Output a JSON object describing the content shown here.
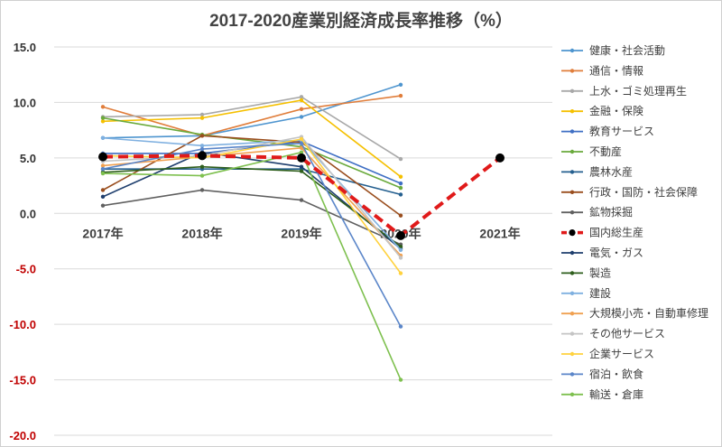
{
  "chart_data": {
    "type": "line",
    "title": "2017-2020産業別経済成長率推移（%）",
    "xlabel": "",
    "ylabel": "",
    "categories": [
      "2017年",
      "2018年",
      "2019年",
      "2020年",
      "2021年"
    ],
    "ylim": [
      -20,
      15
    ],
    "yticks": [
      "15.0",
      "10.0",
      "5.0",
      "0.0",
      "-5.0",
      "-10.0",
      "-15.0",
      "-20.0"
    ],
    "grid": true,
    "legend_position": "right",
    "series": [
      {
        "name": "健康・社会活動",
        "color": "#4e95cf",
        "values": [
          6.8,
          7.0,
          8.7,
          11.6,
          null
        ]
      },
      {
        "name": "通信・情報",
        "color": "#e07d3a",
        "values": [
          9.6,
          7.0,
          9.4,
          10.6,
          null
        ]
      },
      {
        "name": "上水・ゴミ処理再生",
        "color": "#a8a8a8",
        "values": [
          8.7,
          8.9,
          10.5,
          4.9,
          null
        ]
      },
      {
        "name": "金融・保険",
        "color": "#f5c000",
        "values": [
          8.3,
          8.6,
          10.2,
          3.3,
          null
        ]
      },
      {
        "name": "教育サービス",
        "color": "#3f6fc4",
        "values": [
          5.4,
          5.4,
          6.5,
          2.7,
          null
        ]
      },
      {
        "name": "不動産",
        "color": "#6aaa3c",
        "values": [
          8.6,
          7.1,
          6.0,
          2.3,
          null
        ]
      },
      {
        "name": "農林水産",
        "color": "#245f8f",
        "values": [
          4.0,
          4.0,
          4.0,
          1.7,
          null
        ]
      },
      {
        "name": "行政・国防・社会保障",
        "color": "#9a4e1e",
        "values": [
          2.1,
          7.0,
          6.4,
          -0.2,
          null
        ]
      },
      {
        "name": "鉱物採掘",
        "color": "#606060",
        "values": [
          0.7,
          2.1,
          1.2,
          -2.8,
          null
        ]
      },
      {
        "name": "国内総生産",
        "color": "#e01a1a",
        "values": [
          5.1,
          5.2,
          5.0,
          -2.0,
          5.0
        ]
      },
      {
        "name": "電気・ガス",
        "color": "#1f3f6e",
        "values": [
          1.5,
          5.5,
          4.2,
          -3.2,
          null
        ]
      },
      {
        "name": "製造",
        "color": "#2e5e1c",
        "values": [
          3.7,
          4.2,
          3.8,
          -3.0,
          null
        ]
      },
      {
        "name": "建設",
        "color": "#7fb0e0",
        "values": [
          6.8,
          6.1,
          6.6,
          -3.3,
          null
        ]
      },
      {
        "name": "大規模小売・自動車修理",
        "color": "#f0a050",
        "values": [
          4.3,
          5.1,
          5.9,
          -3.8,
          null
        ]
      },
      {
        "name": "その他サービス",
        "color": "#c4c4c4",
        "values": [
          4.7,
          5.2,
          6.9,
          -4.0,
          null
        ]
      },
      {
        "name": "企業サービス",
        "color": "#ffd23f",
        "values": [
          5.2,
          5.0,
          6.7,
          -5.4,
          null
        ]
      },
      {
        "name": "宿泊・飲食",
        "color": "#5b86c9",
        "values": [
          4.0,
          5.8,
          6.3,
          -10.2,
          null
        ]
      },
      {
        "name": "輸送・倉庫",
        "color": "#7ec04f",
        "values": [
          3.6,
          3.4,
          5.5,
          -15.0,
          null
        ]
      }
    ]
  }
}
